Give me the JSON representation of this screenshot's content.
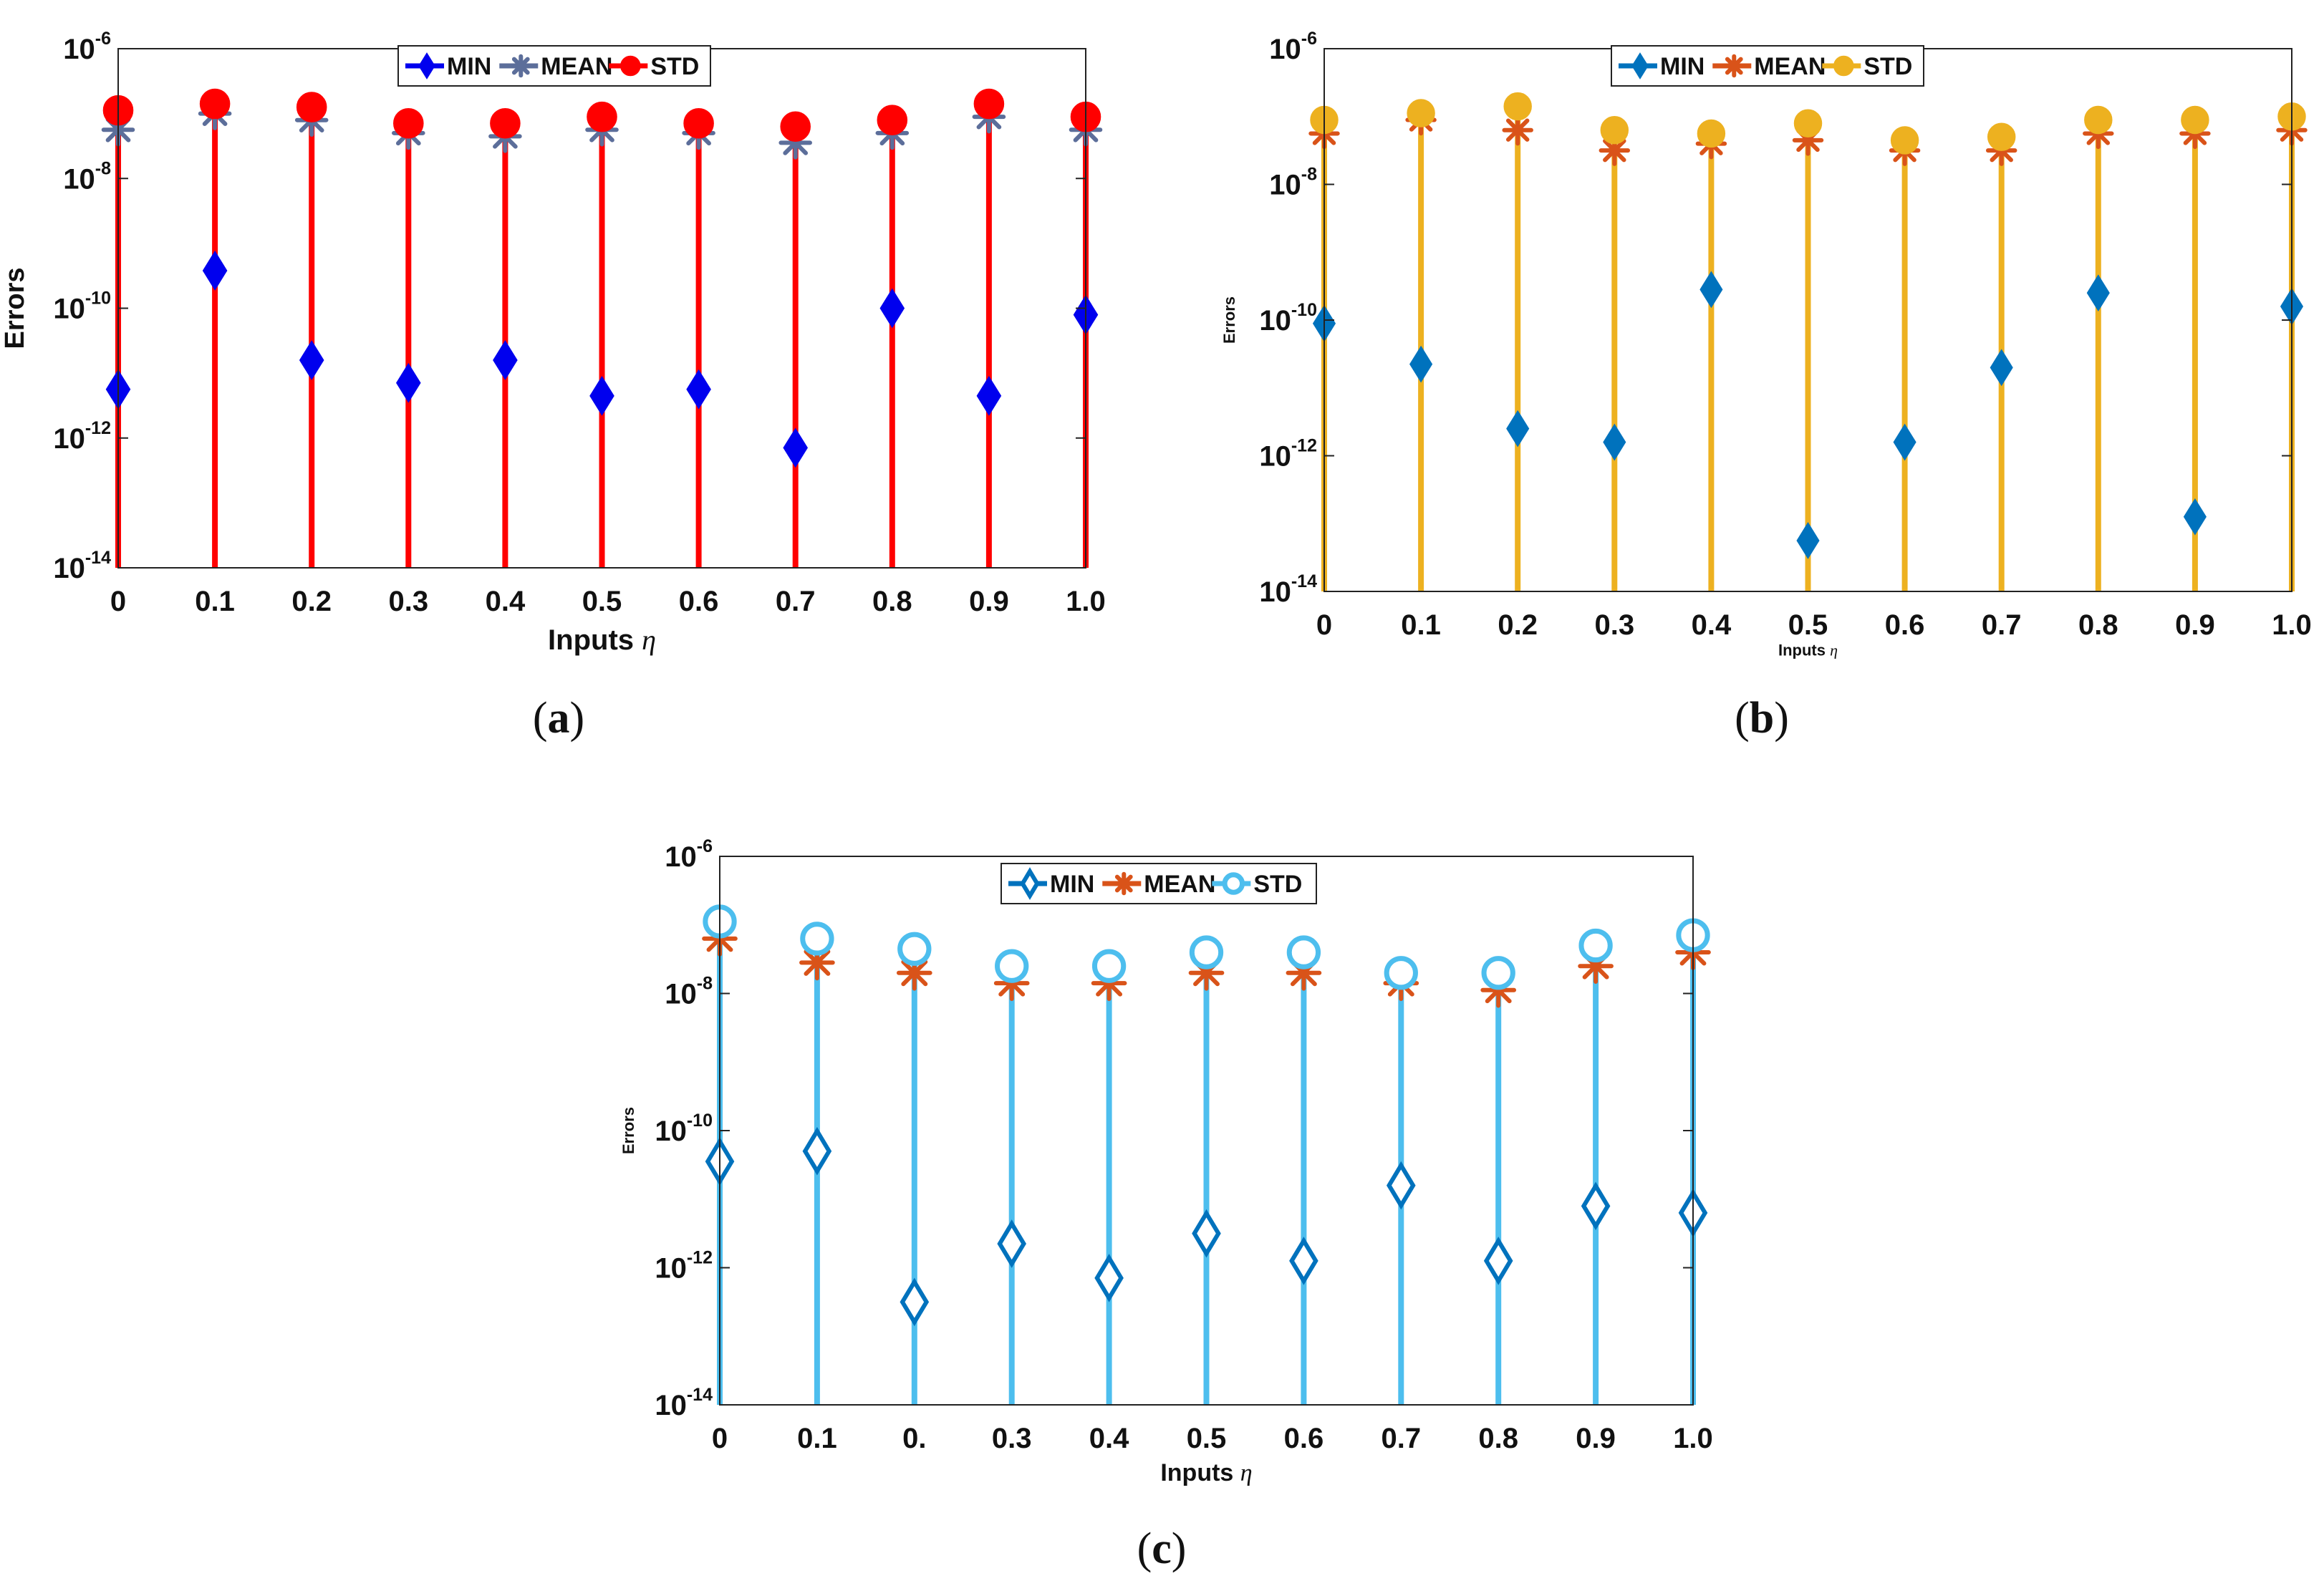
{
  "chart_data": [
    {
      "type": "scatter",
      "panel_label": "(a)",
      "title": "",
      "xlabel": "Inputs",
      "xlabel_symbol": "η",
      "ylabel": "Errors",
      "yscale": "log",
      "ylim_exp": [
        -14,
        -6
      ],
      "ytick_exponents": [
        "-6",
        "-8",
        "-10",
        "-12",
        "-14"
      ],
      "legend_location": "top-center",
      "categories": [
        "0",
        "0.1",
        "0.2",
        "0.3",
        "0.4",
        "0.5",
        "0.6",
        "0.7",
        "0.8",
        "0.9",
        "1.0"
      ],
      "stem_color": "#ff0000",
      "series": [
        {
          "name": "MIN",
          "color": "#0000ee",
          "marker": "diamond-filled",
          "log10_values": [
            -11.25,
            -9.42,
            -10.8,
            -11.15,
            -10.8,
            -11.35,
            -11.25,
            -12.15,
            -10.0,
            -11.35,
            -10.1
          ]
        },
        {
          "name": "MEAN",
          "color": "#5c6e9a",
          "marker": "asterisk",
          "log10_values": [
            -7.25,
            -7.0,
            -7.1,
            -7.3,
            -7.35,
            -7.25,
            -7.3,
            -7.45,
            -7.3,
            -7.05,
            -7.25
          ]
        },
        {
          "name": "STD",
          "color": "#ff0000",
          "marker": "circle-filled",
          "log10_values": [
            -6.95,
            -6.85,
            -6.9,
            -7.15,
            -7.15,
            -7.05,
            -7.15,
            -7.2,
            -7.1,
            -6.85,
            -7.05
          ]
        }
      ]
    },
    {
      "type": "scatter",
      "panel_label": "(b)",
      "title": "",
      "xlabel": "Inputs",
      "xlabel_symbol": "η",
      "ylabel": "Errors",
      "yscale": "log",
      "ylim_exp": [
        -14,
        -6
      ],
      "ytick_exponents": [
        "-6",
        "-8",
        "-10",
        "-12",
        "-14"
      ],
      "legend_location": "top-center",
      "categories": [
        "0",
        "0.1",
        "0.2",
        "0.3",
        "0.4",
        "0.5",
        "0.6",
        "0.7",
        "0.8",
        "0.9",
        "1.0"
      ],
      "stem_color": "#edb120",
      "series": [
        {
          "name": "MIN",
          "color": "#0072bd",
          "marker": "diamond-filled",
          "log10_values": [
            -10.05,
            -10.65,
            -11.6,
            -11.8,
            -9.55,
            -13.25,
            -11.8,
            -10.7,
            -9.6,
            -12.9,
            -9.8
          ]
        },
        {
          "name": "MEAN",
          "color": "#d95319",
          "marker": "asterisk",
          "log10_values": [
            -7.25,
            -7.05,
            -7.2,
            -7.5,
            -7.4,
            -7.35,
            -7.5,
            -7.5,
            -7.25,
            -7.25,
            -7.2
          ]
        },
        {
          "name": "STD",
          "color": "#edb120",
          "marker": "circle-filled",
          "log10_values": [
            -7.05,
            -6.95,
            -6.85,
            -7.2,
            -7.25,
            -7.1,
            -7.35,
            -7.3,
            -7.05,
            -7.05,
            -7.0
          ]
        }
      ]
    },
    {
      "type": "scatter",
      "panel_label": "(c)",
      "title": "",
      "xlabel": "Inputs",
      "xlabel_symbol": "η",
      "ylabel": "Errors",
      "yscale": "log",
      "ylim_exp": [
        -14,
        -6
      ],
      "ytick_exponents": [
        "-6",
        "-8",
        "-10",
        "-12",
        "-14"
      ],
      "legend_location": "top-center",
      "categories": [
        "0",
        "0.1",
        "0.",
        "0.3",
        "0.4",
        "0.5",
        "0.6",
        "0.7",
        "0.8",
        "0.9",
        "1.0"
      ],
      "stem_color": "#4dbeee",
      "series": [
        {
          "name": "MIN",
          "color": "#0072bd",
          "marker": "diamond-open",
          "log10_values": [
            -10.45,
            -10.3,
            -12.5,
            -11.65,
            -12.15,
            -11.5,
            -11.9,
            -10.8,
            -11.9,
            -11.1,
            -11.2
          ]
        },
        {
          "name": "MEAN",
          "color": "#d95319",
          "marker": "asterisk",
          "log10_values": [
            -7.2,
            -7.55,
            -7.7,
            -7.85,
            -7.85,
            -7.7,
            -7.7,
            -7.85,
            -7.95,
            -7.6,
            -7.4
          ]
        },
        {
          "name": "STD",
          "color": "#4dbeee",
          "marker": "circle-open",
          "log10_values": [
            -6.95,
            -7.2,
            -7.35,
            -7.6,
            -7.6,
            -7.4,
            -7.4,
            -7.7,
            -7.7,
            -7.3,
            -7.15
          ]
        }
      ]
    }
  ]
}
